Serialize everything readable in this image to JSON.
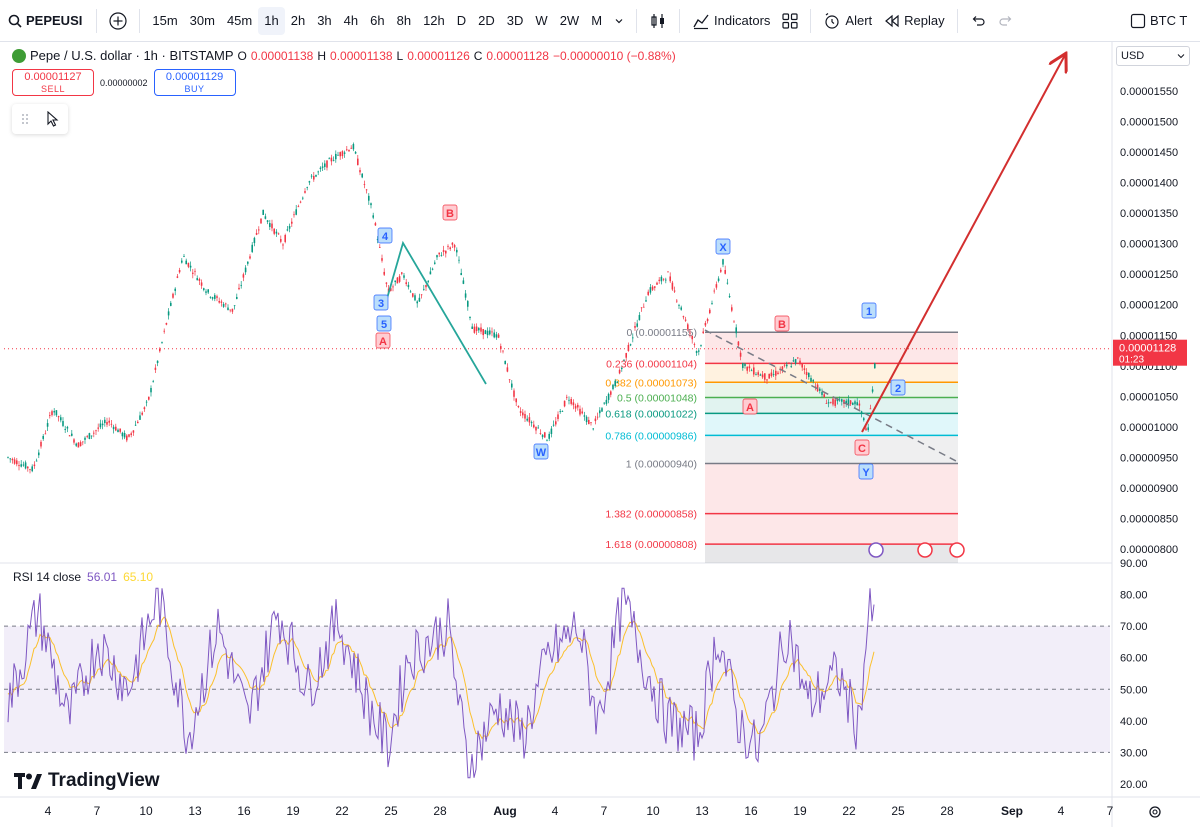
{
  "toolbar": {
    "symbol": "PEPEUSI",
    "intervals": [
      "15m",
      "30m",
      "45m",
      "1h",
      "2h",
      "3h",
      "4h",
      "6h",
      "8h",
      "12h",
      "D",
      "2D",
      "3D",
      "W",
      "2W",
      "M"
    ],
    "active_interval": "1h",
    "indicators_label": "Indicators",
    "alert_label": "Alert",
    "replay_label": "Replay",
    "compare_label": "BTC T"
  },
  "legend": {
    "title": "Pepe / U.S. dollar · 1h · BITSTAMP",
    "o_key": "O",
    "o_val": "0.00001138",
    "h_key": "H",
    "h_val": "0.00001138",
    "l_key": "L",
    "l_val": "0.00001126",
    "c_key": "C",
    "c_val": "0.00001128",
    "change": "−0.00000010 (−0.88%)"
  },
  "trade": {
    "sell_price": "0.00001127",
    "sell_label": "SELL",
    "spread": "0.00000002",
    "buy_price": "0.00001129",
    "buy_label": "BUY"
  },
  "price_scale": {
    "currency": "USD",
    "ticks": [
      "0.00001550",
      "0.00001500",
      "0.00001450",
      "0.00001400",
      "0.00001350",
      "0.00001300",
      "0.00001250",
      "0.00001200",
      "0.00001150",
      "0.00001100",
      "0.00001050",
      "0.00001000",
      "0.00000950",
      "0.00000900",
      "0.00000850",
      "0.00000800"
    ],
    "last_price": "0.00001128",
    "countdown": "01:23"
  },
  "rsi": {
    "label": "RSI 14 close",
    "value": "56.01",
    "ma_value": "65.10",
    "ticks": [
      "90.00",
      "80.00",
      "70.00",
      "60.00",
      "50.00",
      "40.00",
      "30.00",
      "20.00"
    ]
  },
  "time_axis": [
    "4",
    "7",
    "10",
    "13",
    "16",
    "19",
    "22",
    "25",
    "28",
    "Aug",
    "4",
    "7",
    "10",
    "13",
    "16",
    "19",
    "22",
    "25",
    "28",
    "Sep",
    "4",
    "7"
  ],
  "fib_levels": [
    {
      "label": "0 (0.00001155)",
      "price": 1.155e-05,
      "color": "#787b86"
    },
    {
      "label": "0.236 (0.00001104)",
      "price": 1.104e-05,
      "color": "#f23645"
    },
    {
      "label": "0.382 (0.00001073)",
      "price": 1.073e-05,
      "color": "#ff9800"
    },
    {
      "label": "0.5 (0.00001048)",
      "price": 1.048e-05,
      "color": "#4caf50"
    },
    {
      "label": "0.618 (0.00001022)",
      "price": 1.022e-05,
      "color": "#089981"
    },
    {
      "label": "0.786 (0.00000986)",
      "price": 9.86e-06,
      "color": "#00bcd4"
    },
    {
      "label": "1 (0.00000940)",
      "price": 9.4e-06,
      "color": "#787b86"
    },
    {
      "label": "1.382 (0.00000858)",
      "price": 8.58e-06,
      "color": "#f23645"
    },
    {
      "label": "1.618 (0.00000808)",
      "price": 8.08e-06,
      "color": "#f23645"
    }
  ],
  "wave_labels": [
    {
      "text": "4",
      "color": "#2962ff"
    },
    {
      "text": "3",
      "color": "#2962ff"
    },
    {
      "text": "5",
      "color": "#2962ff"
    },
    {
      "text": "A",
      "color": "#f23645"
    },
    {
      "text": "B",
      "color": "#f23645"
    },
    {
      "text": "W",
      "color": "#2962ff"
    },
    {
      "text": "X",
      "color": "#2962ff"
    },
    {
      "text": "B",
      "color": "#f23645"
    },
    {
      "text": "A",
      "color": "#f23645"
    },
    {
      "text": "1",
      "color": "#2962ff"
    },
    {
      "text": "2",
      "color": "#2962ff"
    },
    {
      "text": "C",
      "color": "#f23645"
    },
    {
      "text": "Y",
      "color": "#2962ff"
    }
  ],
  "branding": {
    "logo_text": "TradingView"
  },
  "chart_data": {
    "type": "candlestick",
    "title": "Pepe / U.S. dollar · 1h · BITSTAMP",
    "ylim": [
      7.8e-06,
      1.58e-05
    ],
    "rsi_ylim": [
      20,
      90
    ],
    "path_points": [
      [
        0,
        9.5e-06
      ],
      [
        25,
        9.3e-06
      ],
      [
        45,
        1.03e-05
      ],
      [
        70,
        9.7e-06
      ],
      [
        100,
        1.01e-05
      ],
      [
        120,
        9.8e-06
      ],
      [
        140,
        1.04e-05
      ],
      [
        160,
        1.18e-05
      ],
      [
        175,
        1.28e-05
      ],
      [
        200,
        1.22e-05
      ],
      [
        225,
        1.19e-05
      ],
      [
        255,
        1.35e-05
      ],
      [
        275,
        1.3e-05
      ],
      [
        300,
        1.4e-05
      ],
      [
        325,
        1.44e-05
      ],
      [
        345,
        1.46e-05
      ],
      [
        365,
        1.35e-05
      ],
      [
        380,
        1.22e-05
      ],
      [
        395,
        1.25e-05
      ],
      [
        410,
        1.2e-05
      ],
      [
        430,
        1.28e-05
      ],
      [
        447,
        1.3e-05
      ],
      [
        465,
        1.16e-05
      ],
      [
        490,
        1.15e-05
      ],
      [
        510,
        1.03e-05
      ],
      [
        540,
        9.8e-06
      ],
      [
        560,
        1.05e-05
      ],
      [
        585,
        1e-05
      ],
      [
        610,
        1.08e-05
      ],
      [
        640,
        1.22e-05
      ],
      [
        660,
        1.25e-05
      ],
      [
        690,
        1.12e-05
      ],
      [
        715,
        1.27e-05
      ],
      [
        735,
        1.1e-05
      ],
      [
        760,
        1.08e-05
      ],
      [
        790,
        1.11e-05
      ],
      [
        820,
        1.04e-05
      ],
      [
        850,
        1.04e-05
      ],
      [
        860,
        9.9e-06
      ],
      [
        870,
        1.15e-05
      ],
      [
        875,
        1.13e-05
      ]
    ],
    "rsi_path": [
      [
        0,
        45
      ],
      [
        30,
        75
      ],
      [
        60,
        40
      ],
      [
        90,
        65
      ],
      [
        120,
        50
      ],
      [
        150,
        80
      ],
      [
        180,
        35
      ],
      [
        210,
        70
      ],
      [
        240,
        40
      ],
      [
        270,
        75
      ],
      [
        300,
        50
      ],
      [
        330,
        72
      ],
      [
        360,
        45
      ],
      [
        380,
        32
      ],
      [
        400,
        60
      ],
      [
        440,
        70
      ],
      [
        460,
        25
      ],
      [
        490,
        45
      ],
      [
        515,
        35
      ],
      [
        540,
        60
      ],
      [
        570,
        70
      ],
      [
        590,
        40
      ],
      [
        615,
        78
      ],
      [
        640,
        55
      ],
      [
        660,
        40
      ],
      [
        690,
        35
      ],
      [
        710,
        68
      ],
      [
        730,
        40
      ],
      [
        750,
        30
      ],
      [
        780,
        70
      ],
      [
        800,
        45
      ],
      [
        830,
        55
      ],
      [
        850,
        38
      ],
      [
        862,
        78
      ],
      [
        870,
        65
      ],
      [
        875,
        56
      ]
    ]
  }
}
